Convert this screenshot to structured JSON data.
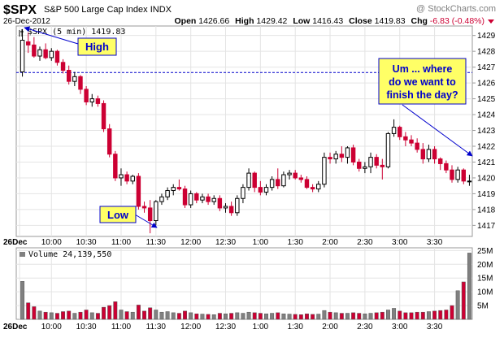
{
  "header": {
    "symbol": "$SPX",
    "name": "S&P 500 Large Cap Index",
    "exchange": "INDX",
    "date": "26-Dec-2012",
    "watermark": "@ StockCharts.com",
    "open_label": "Open",
    "open": "1426.66",
    "high_label": "High",
    "high": "1429.42",
    "low_label": "Low",
    "low": "1416.43",
    "close_label": "Close",
    "close": "1419.83",
    "chg_label": "Chg",
    "chg": "-6.83 (-0.48%)"
  },
  "price_panel": {
    "legend": "$SPX (5 min) 1419.83",
    "y_ticks": [
      "1429",
      "1428",
      "1427",
      "1426",
      "1425",
      "1424",
      "1423",
      "1422",
      "1421",
      "1420",
      "1419",
      "1418",
      "1417"
    ],
    "reference_level": 1426.66
  },
  "volume_panel": {
    "legend": "Volume 24,139,550",
    "y_ticks": [
      "25M",
      "20M",
      "15M",
      "10M",
      "5M"
    ]
  },
  "x_ticks": [
    "26Dec",
    "10:00",
    "10:30",
    "11:00",
    "11:30",
    "12:00",
    "12:30",
    "1:00",
    "1:30",
    "2:00",
    "2:30",
    "3:00",
    "3:30"
  ],
  "annotations": {
    "high": "High",
    "low": "Low",
    "finish_lines": [
      "Um ... where",
      "do we want to",
      "finish the day?"
    ]
  },
  "colors": {
    "up": "#ffffff",
    "down": "#cc0033",
    "volume_up": "#808080",
    "volume_down": "#cc0033",
    "reference": "#0000cc",
    "annotation_bg": "#ffff66",
    "arrow": "#0000cc"
  },
  "chart_data": {
    "type": "candlestick",
    "interval": "5 min",
    "ylim": [
      1416.3,
      1429.6
    ],
    "volume_ylim": [
      0,
      26
    ],
    "candles": [
      {
        "t": "9:35",
        "o": 1426.7,
        "h": 1429.4,
        "l": 1426.4,
        "c": 1428.7,
        "v": 13.8
      },
      {
        "t": "9:40",
        "o": 1428.6,
        "h": 1429.2,
        "l": 1427.9,
        "c": 1428.4,
        "v": 6.0
      },
      {
        "t": "9:45",
        "o": 1428.4,
        "h": 1428.9,
        "l": 1427.6,
        "c": 1427.7,
        "v": 4.6
      },
      {
        "t": "9:50",
        "o": 1427.7,
        "h": 1428.3,
        "l": 1427.4,
        "c": 1428.1,
        "v": 3.0
      },
      {
        "t": "9:55",
        "o": 1428.1,
        "h": 1428.5,
        "l": 1427.5,
        "c": 1427.6,
        "v": 2.6
      },
      {
        "t": "10:00",
        "o": 1427.6,
        "h": 1428.2,
        "l": 1427.4,
        "c": 1428.0,
        "v": 2.4
      },
      {
        "t": "10:05",
        "o": 1428.0,
        "h": 1428.1,
        "l": 1427.1,
        "c": 1427.3,
        "v": 2.2
      },
      {
        "t": "10:10",
        "o": 1427.3,
        "h": 1427.5,
        "l": 1426.6,
        "c": 1426.8,
        "v": 2.8
      },
      {
        "t": "10:15",
        "o": 1426.8,
        "h": 1427.1,
        "l": 1425.9,
        "c": 1426.1,
        "v": 3.0
      },
      {
        "t": "10:20",
        "o": 1426.1,
        "h": 1426.7,
        "l": 1425.8,
        "c": 1426.4,
        "v": 2.2
      },
      {
        "t": "10:25",
        "o": 1426.4,
        "h": 1426.5,
        "l": 1425.3,
        "c": 1425.6,
        "v": 2.6
      },
      {
        "t": "10:30",
        "o": 1425.6,
        "h": 1425.8,
        "l": 1424.6,
        "c": 1424.8,
        "v": 3.4
      },
      {
        "t": "10:35",
        "o": 1424.8,
        "h": 1425.3,
        "l": 1424.5,
        "c": 1425.0,
        "v": 2.4
      },
      {
        "t": "10:40",
        "o": 1425.0,
        "h": 1425.2,
        "l": 1424.5,
        "c": 1424.7,
        "v": 2.2
      },
      {
        "t": "10:45",
        "o": 1424.7,
        "h": 1424.9,
        "l": 1422.9,
        "c": 1423.1,
        "v": 4.4
      },
      {
        "t": "10:50",
        "o": 1423.1,
        "h": 1423.4,
        "l": 1421.3,
        "c": 1421.5,
        "v": 5.0
      },
      {
        "t": "10:55",
        "o": 1421.5,
        "h": 1421.7,
        "l": 1419.8,
        "c": 1420.0,
        "v": 6.4
      },
      {
        "t": "11:00",
        "o": 1420.0,
        "h": 1420.6,
        "l": 1419.5,
        "c": 1420.2,
        "v": 3.4
      },
      {
        "t": "11:05",
        "o": 1420.2,
        "h": 1420.4,
        "l": 1419.6,
        "c": 1419.8,
        "v": 2.8
      },
      {
        "t": "11:10",
        "o": 1419.8,
        "h": 1420.2,
        "l": 1419.6,
        "c": 1420.1,
        "v": 2.6
      },
      {
        "t": "11:15",
        "o": 1420.1,
        "h": 1420.3,
        "l": 1418.0,
        "c": 1418.2,
        "v": 5.2
      },
      {
        "t": "11:20",
        "o": 1418.2,
        "h": 1418.5,
        "l": 1417.8,
        "c": 1418.1,
        "v": 3.0
      },
      {
        "t": "11:25",
        "o": 1418.1,
        "h": 1418.6,
        "l": 1416.5,
        "c": 1417.3,
        "v": 4.2
      },
      {
        "t": "11:30",
        "o": 1417.3,
        "h": 1418.6,
        "l": 1417.0,
        "c": 1418.5,
        "v": 3.4
      },
      {
        "t": "11:35",
        "o": 1418.5,
        "h": 1419.0,
        "l": 1418.3,
        "c": 1418.8,
        "v": 2.6
      },
      {
        "t": "11:40",
        "o": 1418.8,
        "h": 1419.4,
        "l": 1418.6,
        "c": 1419.2,
        "v": 2.8
      },
      {
        "t": "11:45",
        "o": 1419.2,
        "h": 1419.6,
        "l": 1418.9,
        "c": 1419.4,
        "v": 2.4
      },
      {
        "t": "11:50",
        "o": 1419.4,
        "h": 1419.9,
        "l": 1419.2,
        "c": 1419.3,
        "v": 2.2
      },
      {
        "t": "11:55",
        "o": 1419.3,
        "h": 1419.5,
        "l": 1418.1,
        "c": 1418.3,
        "v": 3.0
      },
      {
        "t": "12:00",
        "o": 1418.3,
        "h": 1419.2,
        "l": 1418.1,
        "c": 1419.0,
        "v": 2.4
      },
      {
        "t": "12:05",
        "o": 1419.0,
        "h": 1419.1,
        "l": 1418.4,
        "c": 1418.6,
        "v": 2.0
      },
      {
        "t": "12:10",
        "o": 1418.6,
        "h": 1419.0,
        "l": 1418.4,
        "c": 1418.8,
        "v": 1.9
      },
      {
        "t": "12:15",
        "o": 1418.8,
        "h": 1419.0,
        "l": 1418.3,
        "c": 1418.5,
        "v": 1.8
      },
      {
        "t": "12:20",
        "o": 1418.5,
        "h": 1418.9,
        "l": 1418.3,
        "c": 1418.7,
        "v": 1.7
      },
      {
        "t": "12:25",
        "o": 1418.7,
        "h": 1418.9,
        "l": 1417.9,
        "c": 1418.1,
        "v": 2.2
      },
      {
        "t": "12:30",
        "o": 1418.1,
        "h": 1418.4,
        "l": 1417.8,
        "c": 1418.2,
        "v": 2.0
      },
      {
        "t": "12:35",
        "o": 1418.2,
        "h": 1418.5,
        "l": 1417.6,
        "c": 1417.8,
        "v": 2.2
      },
      {
        "t": "12:40",
        "o": 1417.8,
        "h": 1418.9,
        "l": 1417.6,
        "c": 1418.7,
        "v": 2.4
      },
      {
        "t": "12:45",
        "o": 1418.7,
        "h": 1419.6,
        "l": 1418.4,
        "c": 1419.4,
        "v": 2.2
      },
      {
        "t": "12:50",
        "o": 1419.4,
        "h": 1420.6,
        "l": 1419.2,
        "c": 1420.3,
        "v": 2.6
      },
      {
        "t": "12:55",
        "o": 1420.3,
        "h": 1420.4,
        "l": 1419.1,
        "c": 1419.4,
        "v": 2.4
      },
      {
        "t": "1:00",
        "o": 1419.4,
        "h": 1419.8,
        "l": 1418.9,
        "c": 1419.1,
        "v": 2.2
      },
      {
        "t": "1:05",
        "o": 1419.1,
        "h": 1419.6,
        "l": 1418.9,
        "c": 1419.4,
        "v": 2.0
      },
      {
        "t": "1:10",
        "o": 1419.4,
        "h": 1420.1,
        "l": 1419.2,
        "c": 1419.9,
        "v": 2.2
      },
      {
        "t": "1:15",
        "o": 1419.9,
        "h": 1420.6,
        "l": 1419.3,
        "c": 1419.5,
        "v": 2.4
      },
      {
        "t": "1:20",
        "o": 1419.5,
        "h": 1420.4,
        "l": 1419.4,
        "c": 1420.2,
        "v": 2.0
      },
      {
        "t": "1:25",
        "o": 1420.2,
        "h": 1420.5,
        "l": 1419.9,
        "c": 1420.3,
        "v": 1.9
      },
      {
        "t": "1:30",
        "o": 1420.3,
        "h": 1420.5,
        "l": 1419.9,
        "c": 1420.0,
        "v": 1.8
      },
      {
        "t": "1:35",
        "o": 1420.0,
        "h": 1420.2,
        "l": 1419.7,
        "c": 1419.9,
        "v": 1.7
      },
      {
        "t": "1:40",
        "o": 1419.9,
        "h": 1420.1,
        "l": 1419.3,
        "c": 1419.4,
        "v": 2.0
      },
      {
        "t": "1:45",
        "o": 1419.4,
        "h": 1419.6,
        "l": 1419.1,
        "c": 1419.3,
        "v": 1.8
      },
      {
        "t": "1:50",
        "o": 1419.3,
        "h": 1419.8,
        "l": 1419.1,
        "c": 1419.6,
        "v": 1.9
      },
      {
        "t": "1:55",
        "o": 1419.6,
        "h": 1421.6,
        "l": 1419.4,
        "c": 1421.3,
        "v": 3.2
      },
      {
        "t": "2:00",
        "o": 1421.3,
        "h": 1421.6,
        "l": 1420.9,
        "c": 1421.2,
        "v": 2.6
      },
      {
        "t": "2:05",
        "o": 1421.2,
        "h": 1421.7,
        "l": 1420.9,
        "c": 1421.5,
        "v": 2.4
      },
      {
        "t": "2:10",
        "o": 1421.5,
        "h": 1422.0,
        "l": 1421.0,
        "c": 1421.3,
        "v": 2.2
      },
      {
        "t": "2:15",
        "o": 1421.3,
        "h": 1422.0,
        "l": 1420.9,
        "c": 1421.9,
        "v": 2.2
      },
      {
        "t": "2:20",
        "o": 1421.9,
        "h": 1422.1,
        "l": 1420.8,
        "c": 1421.0,
        "v": 2.4
      },
      {
        "t": "2:25",
        "o": 1421.0,
        "h": 1421.2,
        "l": 1420.4,
        "c": 1420.6,
        "v": 2.2
      },
      {
        "t": "2:30",
        "o": 1420.6,
        "h": 1421.0,
        "l": 1420.3,
        "c": 1420.7,
        "v": 2.0
      },
      {
        "t": "2:35",
        "o": 1420.7,
        "h": 1421.6,
        "l": 1420.3,
        "c": 1421.3,
        "v": 2.2
      },
      {
        "t": "2:40",
        "o": 1421.3,
        "h": 1421.5,
        "l": 1420.6,
        "c": 1420.8,
        "v": 2.4
      },
      {
        "t": "2:45",
        "o": 1420.8,
        "h": 1421.2,
        "l": 1419.9,
        "c": 1420.7,
        "v": 2.6
      },
      {
        "t": "2:50",
        "o": 1420.7,
        "h": 1422.9,
        "l": 1420.6,
        "c": 1422.8,
        "v": 3.4
      },
      {
        "t": "2:55",
        "o": 1422.8,
        "h": 1423.7,
        "l": 1422.6,
        "c": 1423.2,
        "v": 4.0
      },
      {
        "t": "3:00",
        "o": 1423.2,
        "h": 1423.3,
        "l": 1422.4,
        "c": 1422.6,
        "v": 3.0
      },
      {
        "t": "3:05",
        "o": 1422.6,
        "h": 1422.9,
        "l": 1422.0,
        "c": 1422.4,
        "v": 2.4
      },
      {
        "t": "3:10",
        "o": 1422.4,
        "h": 1422.7,
        "l": 1422.0,
        "c": 1422.2,
        "v": 2.4
      },
      {
        "t": "3:15",
        "o": 1422.2,
        "h": 1422.5,
        "l": 1421.6,
        "c": 1421.8,
        "v": 2.6
      },
      {
        "t": "3:20",
        "o": 1421.8,
        "h": 1422.2,
        "l": 1420.9,
        "c": 1421.2,
        "v": 2.6
      },
      {
        "t": "3:25",
        "o": 1421.2,
        "h": 1422.1,
        "l": 1421.0,
        "c": 1421.8,
        "v": 2.8
      },
      {
        "t": "3:30",
        "o": 1421.8,
        "h": 1422.0,
        "l": 1420.9,
        "c": 1421.2,
        "v": 3.0
      },
      {
        "t": "3:35",
        "o": 1421.2,
        "h": 1421.3,
        "l": 1420.5,
        "c": 1420.9,
        "v": 3.2
      },
      {
        "t": "3:40",
        "o": 1420.9,
        "h": 1421.1,
        "l": 1420.3,
        "c": 1420.5,
        "v": 3.4
      },
      {
        "t": "3:45",
        "o": 1420.5,
        "h": 1420.8,
        "l": 1419.7,
        "c": 1419.9,
        "v": 5.0
      },
      {
        "t": "3:50",
        "o": 1419.9,
        "h": 1420.7,
        "l": 1419.7,
        "c": 1420.5,
        "v": 10.4
      },
      {
        "t": "3:55",
        "o": 1420.5,
        "h": 1420.6,
        "l": 1419.6,
        "c": 1419.8,
        "v": 13.6
      },
      {
        "t": "4:00",
        "o": 1419.8,
        "h": 1420.2,
        "l": 1419.5,
        "c": 1419.8,
        "v": 24.1
      }
    ]
  }
}
